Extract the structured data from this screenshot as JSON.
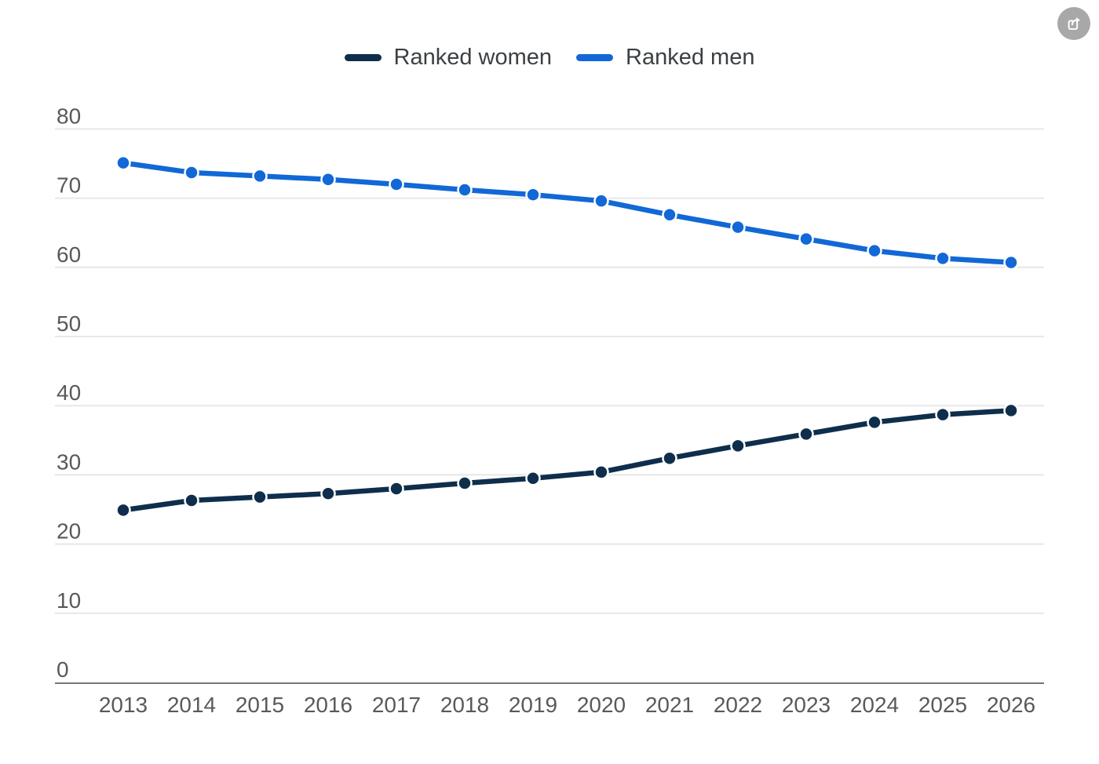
{
  "chart_data": {
    "type": "line",
    "title": "",
    "x": [
      2013,
      2014,
      2015,
      2016,
      2017,
      2018,
      2019,
      2020,
      2021,
      2022,
      2023,
      2024,
      2025,
      2026
    ],
    "series": [
      {
        "name": "Ranked women",
        "color": "#0e2e4c",
        "values": [
          24.9,
          26.3,
          26.8,
          27.3,
          28.0,
          28.8,
          29.5,
          30.4,
          32.4,
          34.2,
          35.9,
          37.6,
          38.7,
          39.3
        ]
      },
      {
        "name": "Ranked men",
        "color": "#1168d6",
        "values": [
          75.1,
          73.7,
          73.2,
          72.7,
          72.0,
          71.2,
          70.5,
          69.6,
          67.6,
          65.8,
          64.1,
          62.4,
          61.3,
          60.7
        ]
      }
    ],
    "xlabel": "",
    "ylabel": "",
    "ylim": [
      0,
      80
    ],
    "yticks": [
      0,
      10,
      20,
      30,
      40,
      50,
      60,
      70,
      80
    ],
    "grid": "horizontal",
    "legend_position": "top-center",
    "marker": "circle"
  },
  "toolbar": {
    "share_icon": "share-export"
  },
  "style_colors": {
    "gridline": "#e7e7e7",
    "axis_line": "#757575",
    "tick_label": "#58595b",
    "legend_label": "#3c4043",
    "share_button_bg": "#a8a8a8",
    "marker_halo": "#ffffff"
  }
}
